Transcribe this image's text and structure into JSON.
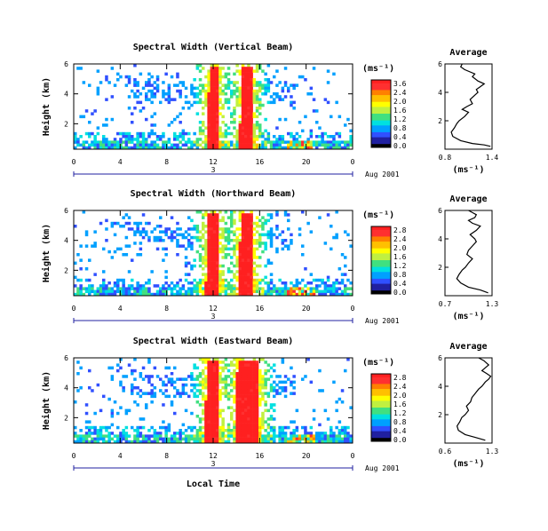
{
  "colors": {
    "scale": [
      "#000000",
      "#2020a0",
      "#3050ff",
      "#00a0ff",
      "#00e0e0",
      "#40e080",
      "#c0f040",
      "#ffff00",
      "#ffc000",
      "#ff8000",
      "#ff3030",
      "#ff2020"
    ],
    "frame": "#000000"
  },
  "shared": {
    "x_ticks": [
      "0",
      "4",
      "8",
      "12",
      "16",
      "20",
      "0"
    ],
    "date_day": "3",
    "date_label": "Aug 2001",
    "xlabel": "Local Time",
    "ylabel": "Height (km)",
    "y_ticks": [
      "6",
      "4",
      "2"
    ],
    "cbar_unit": "(ms⁻¹)",
    "avg_title": "Average",
    "avg_xlabel": "(ms⁻¹)",
    "avg_y_ticks": [
      "6",
      "4",
      "2"
    ]
  },
  "chart_data": [
    {
      "type": "heatmap",
      "title": "Spectral Width (Vertical Beam)",
      "xlabel": "",
      "ylabel": "Height (km)",
      "xlim": [
        0,
        24
      ],
      "ylim": [
        0.3,
        6
      ],
      "colorbar_ticks": [
        "3.6",
        "2.4",
        "2.0",
        "1.6",
        "1.2",
        "0.8",
        "0.4",
        "0.0"
      ],
      "colorbar_range": [
        0.0,
        3.6
      ],
      "features": {
        "red_columns_hours": [
          [
            11.6,
            12.3
          ],
          [
            14.4,
            15.2
          ]
        ],
        "cell_cumulus_hour": 19.5
      }
    },
    {
      "type": "line",
      "title": "Average",
      "xlabel": "(ms⁻¹)",
      "x_ticks": [
        "0.8",
        "1.4"
      ],
      "xlim": [
        0.8,
        1.4
      ],
      "ylim": [
        0,
        6
      ],
      "x": [
        1.38,
        1.3,
        1.15,
        1.0,
        0.9,
        0.88,
        0.92,
        0.95,
        0.98,
        1.05,
        1.1,
        1.02,
        1.08,
        1.15,
        1.12,
        1.18,
        1.22,
        1.2,
        1.25,
        1.3,
        1.22,
        1.15,
        1.18,
        1.05,
        1.0,
        1.02
      ],
      "y": [
        0.2,
        0.3,
        0.4,
        0.6,
        0.9,
        1.2,
        1.5,
        1.8,
        2.0,
        2.3,
        2.6,
        2.8,
        3.0,
        3.2,
        3.5,
        3.8,
        4.0,
        4.2,
        4.4,
        4.6,
        4.8,
        5.1,
        5.3,
        5.6,
        5.8,
        6.0
      ]
    },
    {
      "type": "heatmap",
      "title": "Spectral Width (Northward Beam)",
      "xlabel": "",
      "ylabel": "Height (km)",
      "xlim": [
        0,
        24
      ],
      "ylim": [
        0.3,
        6
      ],
      "colorbar_ticks": [
        "2.8",
        "2.4",
        "2.0",
        "1.6",
        "1.2",
        "0.8",
        "0.4",
        "0.0"
      ],
      "colorbar_range": [
        0.0,
        2.8
      ],
      "features": {
        "red_columns_hours": [
          [
            11.5,
            12.3
          ],
          [
            14.3,
            15.3
          ]
        ],
        "cell_cumulus_hour": 19.5
      }
    },
    {
      "type": "line",
      "title": "Average",
      "xlabel": "(ms⁻¹)",
      "x_ticks": [
        "0.7",
        "1.3"
      ],
      "xlim": [
        0.7,
        1.3
      ],
      "ylim": [
        0,
        6
      ],
      "x": [
        1.25,
        1.15,
        1.0,
        0.9,
        0.85,
        0.88,
        0.92,
        0.96,
        1.0,
        1.05,
        0.98,
        1.0,
        1.05,
        1.1,
        1.08,
        1.02,
        1.1,
        1.15,
        1.05,
        1.0,
        1.08,
        1.1,
        1.05,
        1.0
      ],
      "y": [
        0.2,
        0.4,
        0.6,
        0.9,
        1.2,
        1.5,
        1.8,
        2.0,
        2.3,
        2.6,
        2.9,
        3.2,
        3.5,
        3.8,
        4.0,
        4.3,
        4.6,
        4.9,
        5.1,
        5.3,
        5.5,
        5.7,
        5.85,
        6.0
      ]
    },
    {
      "type": "heatmap",
      "title": "Spectral Width (Eastward Beam)",
      "xlabel": "Local Time",
      "ylabel": "Height (km)",
      "xlim": [
        0,
        24
      ],
      "ylim": [
        0.3,
        6
      ],
      "colorbar_ticks": [
        "2.8",
        "2.4",
        "2.0",
        "1.6",
        "1.2",
        "0.8",
        "0.4",
        "0.0"
      ],
      "colorbar_range": [
        0.0,
        2.8
      ],
      "features": {
        "red_columns_hours": [
          [
            11.4,
            12.3
          ],
          [
            14.0,
            15.8
          ]
        ],
        "cell_cumulus_hour": 19.5
      }
    },
    {
      "type": "line",
      "title": "Average",
      "xlabel": "(ms⁻¹)",
      "x_ticks": [
        "0.6",
        "1.3"
      ],
      "xlim": [
        0.6,
        1.3
      ],
      "ylim": [
        0,
        6
      ],
      "x": [
        1.2,
        1.05,
        0.9,
        0.8,
        0.78,
        0.82,
        0.85,
        0.9,
        0.95,
        0.92,
        0.98,
        1.0,
        1.05,
        1.1,
        1.15,
        1.2,
        1.25,
        1.28,
        1.22,
        1.15,
        1.2,
        1.25,
        1.18,
        1.1
      ],
      "y": [
        0.2,
        0.4,
        0.6,
        0.9,
        1.2,
        1.5,
        1.8,
        2.0,
        2.3,
        2.6,
        2.9,
        3.2,
        3.5,
        3.8,
        4.0,
        4.3,
        4.5,
        4.7,
        4.9,
        5.1,
        5.3,
        5.5,
        5.8,
        6.0
      ]
    }
  ]
}
